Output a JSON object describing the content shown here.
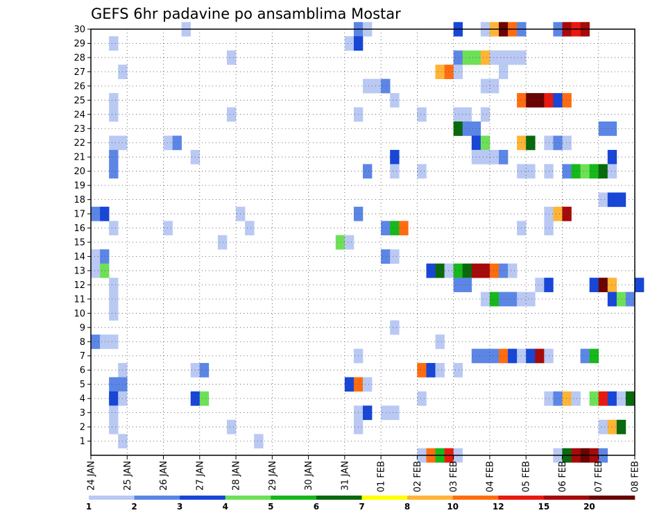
{
  "chart_data": {
    "type": "heatmap",
    "title": "GEFS 6hr padavine po ansamblima Mostar",
    "y_categories": [
      "1",
      "2",
      "3",
      "4",
      "5",
      "6",
      "7",
      "8",
      "9",
      "10",
      "11",
      "12",
      "13",
      "14",
      "15",
      "16",
      "17",
      "18",
      "19",
      "20",
      "21",
      "22",
      "23",
      "24",
      "25",
      "26",
      "27",
      "28",
      "29",
      "30"
    ],
    "x_tick_labels": [
      "24 JAN",
      "25 JAN",
      "26 JAN",
      "27 JAN",
      "28 JAN",
      "29 JAN",
      "30 JAN",
      "31 JAN",
      "01 FEB",
      "02 FEB",
      "03 FEB",
      "04 FEB",
      "05 FEB",
      "06 FEB",
      "07 FEB",
      "08 FEB"
    ],
    "x_domain": [
      "24 JAN 00Z",
      "08 FEB 00Z"
    ],
    "time_step_hours": 6,
    "grid": true,
    "colorbar": {
      "labels": [
        "1",
        "2",
        "3",
        "4",
        "5",
        "6",
        "7",
        "8",
        "10",
        "12",
        "15",
        "20"
      ],
      "colors": [
        "#b9c9f3",
        "#5c86e6",
        "#1846d6",
        "#6ee058",
        "#16b81b",
        "#08690d",
        "#ffff00",
        "#ffb436",
        "#ff6c10",
        "#e81a10",
        "#a60a0a",
        "#6a0303"
      ]
    },
    "cells": [
      [
        30,
        "26 JAN 12Z",
        1
      ],
      [
        30,
        "31 JAN 06Z",
        2
      ],
      [
        30,
        "31 JAN 12Z",
        1
      ],
      [
        30,
        "03 FEB 00Z",
        3
      ],
      [
        30,
        "03 FEB 18Z",
        1
      ],
      [
        30,
        "04 FEB 00Z",
        8
      ],
      [
        30,
        "04 FEB 06Z",
        20
      ],
      [
        30,
        "04 FEB 12Z",
        10
      ],
      [
        30,
        "04 FEB 18Z",
        2
      ],
      [
        30,
        "05 FEB 18Z",
        2
      ],
      [
        30,
        "06 FEB 00Z",
        15
      ],
      [
        30,
        "06 FEB 06Z",
        12
      ],
      [
        30,
        "06 FEB 12Z",
        15
      ],
      [
        29,
        "24 JAN 12Z",
        1
      ],
      [
        29,
        "31 JAN 00Z",
        1
      ],
      [
        29,
        "31 JAN 06Z",
        3
      ],
      [
        28,
        "27 JAN 18Z",
        1
      ],
      [
        28,
        "03 FEB 00Z",
        2
      ],
      [
        28,
        "03 FEB 06Z",
        4
      ],
      [
        28,
        "03 FEB 12Z",
        4
      ],
      [
        28,
        "03 FEB 18Z",
        8
      ],
      [
        28,
        "04 FEB 00Z",
        1
      ],
      [
        28,
        "04 FEB 06Z",
        1
      ],
      [
        28,
        "04 FEB 12Z",
        1
      ],
      [
        28,
        "04 FEB 18Z",
        1
      ],
      [
        27,
        "24 JAN 18Z",
        1
      ],
      [
        27,
        "02 FEB 12Z",
        8
      ],
      [
        27,
        "02 FEB 18Z",
        10
      ],
      [
        27,
        "03 FEB 00Z",
        1
      ],
      [
        27,
        "04 FEB 06Z",
        1
      ],
      [
        26,
        "31 JAN 12Z",
        1
      ],
      [
        26,
        "31 JAN 18Z",
        1
      ],
      [
        26,
        "01 FEB 00Z",
        2
      ],
      [
        26,
        "03 FEB 18Z",
        1
      ],
      [
        26,
        "04 FEB 00Z",
        1
      ],
      [
        25,
        "24 JAN 12Z",
        1
      ],
      [
        25,
        "01 FEB 06Z",
        1
      ],
      [
        25,
        "04 FEB 18Z",
        10
      ],
      [
        25,
        "05 FEB 00Z",
        20
      ],
      [
        25,
        "05 FEB 06Z",
        20
      ],
      [
        25,
        "05 FEB 12Z",
        12
      ],
      [
        25,
        "05 FEB 18Z",
        3
      ],
      [
        25,
        "06 FEB 00Z",
        10
      ],
      [
        24,
        "24 JAN 12Z",
        1
      ],
      [
        24,
        "27 JAN 18Z",
        1
      ],
      [
        24,
        "31 JAN 06Z",
        1
      ],
      [
        24,
        "02 FEB 00Z",
        1
      ],
      [
        24,
        "03 FEB 00Z",
        1
      ],
      [
        24,
        "03 FEB 06Z",
        1
      ],
      [
        24,
        "03 FEB 18Z",
        1
      ],
      [
        23,
        "03 FEB 00Z",
        6
      ],
      [
        23,
        "03 FEB 06Z",
        2
      ],
      [
        23,
        "03 FEB 12Z",
        2
      ],
      [
        23,
        "07 FEB 00Z",
        2
      ],
      [
        23,
        "07 FEB 06Z",
        2
      ],
      [
        22,
        "24 JAN 12Z",
        1
      ],
      [
        22,
        "24 JAN 18Z",
        1
      ],
      [
        22,
        "26 JAN 00Z",
        1
      ],
      [
        22,
        "26 JAN 06Z",
        2
      ],
      [
        22,
        "03 FEB 12Z",
        3
      ],
      [
        22,
        "03 FEB 18Z",
        4
      ],
      [
        22,
        "04 FEB 18Z",
        8
      ],
      [
        22,
        "05 FEB 00Z",
        6
      ],
      [
        22,
        "05 FEB 12Z",
        1
      ],
      [
        22,
        "05 FEB 18Z",
        2
      ],
      [
        22,
        "06 FEB 00Z",
        1
      ],
      [
        21,
        "24 JAN 12Z",
        2
      ],
      [
        21,
        "26 JAN 18Z",
        1
      ],
      [
        21,
        "01 FEB 06Z",
        3
      ],
      [
        21,
        "03 FEB 12Z",
        1
      ],
      [
        21,
        "03 FEB 18Z",
        1
      ],
      [
        21,
        "04 FEB 00Z",
        1
      ],
      [
        21,
        "04 FEB 06Z",
        2
      ],
      [
        21,
        "07 FEB 06Z",
        3
      ],
      [
        20,
        "24 JAN 12Z",
        2
      ],
      [
        20,
        "31 JAN 12Z",
        2
      ],
      [
        20,
        "01 FEB 06Z",
        1
      ],
      [
        20,
        "02 FEB 00Z",
        1
      ],
      [
        20,
        "04 FEB 18Z",
        1
      ],
      [
        20,
        "05 FEB 00Z",
        1
      ],
      [
        20,
        "05 FEB 12Z",
        1
      ],
      [
        20,
        "06 FEB 00Z",
        2
      ],
      [
        20,
        "06 FEB 06Z",
        5
      ],
      [
        20,
        "06 FEB 12Z",
        4
      ],
      [
        20,
        "06 FEB 18Z",
        5
      ],
      [
        20,
        "07 FEB 00Z",
        6
      ],
      [
        20,
        "07 FEB 06Z",
        1
      ],
      [
        18,
        "07 FEB 00Z",
        1
      ],
      [
        18,
        "07 FEB 06Z",
        3
      ],
      [
        18,
        "07 FEB 12Z",
        3
      ],
      [
        17,
        "24 JAN 00Z",
        2
      ],
      [
        17,
        "24 JAN 06Z",
        3
      ],
      [
        17,
        "28 JAN 00Z",
        1
      ],
      [
        17,
        "31 JAN 06Z",
        2
      ],
      [
        17,
        "05 FEB 12Z",
        1
      ],
      [
        17,
        "05 FEB 18Z",
        8
      ],
      [
        17,
        "06 FEB 00Z",
        15
      ],
      [
        16,
        "24 JAN 12Z",
        1
      ],
      [
        16,
        "26 JAN 00Z",
        1
      ],
      [
        16,
        "28 JAN 06Z",
        1
      ],
      [
        16,
        "01 FEB 00Z",
        2
      ],
      [
        16,
        "01 FEB 06Z",
        5
      ],
      [
        16,
        "01 FEB 12Z",
        10
      ],
      [
        16,
        "04 FEB 18Z",
        1
      ],
      [
        16,
        "05 FEB 12Z",
        1
      ],
      [
        15,
        "27 JAN 12Z",
        1
      ],
      [
        15,
        "30 JAN 18Z",
        4
      ],
      [
        15,
        "31 JAN 00Z",
        1
      ],
      [
        14,
        "24 JAN 00Z",
        1
      ],
      [
        14,
        "24 JAN 06Z",
        2
      ],
      [
        14,
        "01 FEB 00Z",
        2
      ],
      [
        14,
        "01 FEB 06Z",
        1
      ],
      [
        13,
        "24 JAN 00Z",
        1
      ],
      [
        13,
        "24 JAN 06Z",
        4
      ],
      [
        13,
        "02 FEB 06Z",
        3
      ],
      [
        13,
        "02 FEB 12Z",
        6
      ],
      [
        13,
        "02 FEB 18Z",
        1
      ],
      [
        13,
        "03 FEB 00Z",
        5
      ],
      [
        13,
        "03 FEB 06Z",
        6
      ],
      [
        13,
        "03 FEB 12Z",
        15
      ],
      [
        13,
        "03 FEB 18Z",
        15
      ],
      [
        13,
        "04 FEB 00Z",
        10
      ],
      [
        13,
        "04 FEB 06Z",
        2
      ],
      [
        13,
        "04 FEB 12Z",
        1
      ],
      [
        12,
        "24 JAN 12Z",
        1
      ],
      [
        12,
        "03 FEB 00Z",
        2
      ],
      [
        12,
        "03 FEB 06Z",
        2
      ],
      [
        12,
        "05 FEB 06Z",
        1
      ],
      [
        12,
        "05 FEB 12Z",
        3
      ],
      [
        12,
        "06 FEB 18Z",
        3
      ],
      [
        12,
        "07 FEB 00Z",
        20
      ],
      [
        12,
        "07 FEB 06Z",
        8
      ],
      [
        12,
        "08 FEB 00Z",
        3
      ],
      [
        11,
        "24 JAN 12Z",
        1
      ],
      [
        11,
        "03 FEB 18Z",
        1
      ],
      [
        11,
        "04 FEB 00Z",
        5
      ],
      [
        11,
        "04 FEB 06Z",
        2
      ],
      [
        11,
        "04 FEB 12Z",
        2
      ],
      [
        11,
        "04 FEB 18Z",
        1
      ],
      [
        11,
        "05 FEB 00Z",
        1
      ],
      [
        11,
        "07 FEB 06Z",
        3
      ],
      [
        11,
        "07 FEB 12Z",
        4
      ],
      [
        11,
        "07 FEB 18Z",
        2
      ],
      [
        10,
        "24 JAN 12Z",
        1
      ],
      [
        9,
        "01 FEB 06Z",
        1
      ],
      [
        8,
        "24 JAN 00Z",
        2
      ],
      [
        8,
        "24 JAN 06Z",
        1
      ],
      [
        8,
        "24 JAN 12Z",
        1
      ],
      [
        8,
        "02 FEB 12Z",
        1
      ],
      [
        7,
        "31 JAN 06Z",
        1
      ],
      [
        7,
        "03 FEB 12Z",
        2
      ],
      [
        7,
        "03 FEB 18Z",
        2
      ],
      [
        7,
        "04 FEB 00Z",
        2
      ],
      [
        7,
        "04 FEB 06Z",
        10
      ],
      [
        7,
        "04 FEB 12Z",
        3
      ],
      [
        7,
        "04 FEB 18Z",
        1
      ],
      [
        7,
        "05 FEB 00Z",
        3
      ],
      [
        7,
        "05 FEB 06Z",
        15
      ],
      [
        7,
        "05 FEB 12Z",
        1
      ],
      [
        7,
        "06 FEB 12Z",
        2
      ],
      [
        7,
        "06 FEB 18Z",
        5
      ],
      [
        6,
        "24 JAN 18Z",
        1
      ],
      [
        6,
        "26 JAN 18Z",
        1
      ],
      [
        6,
        "27 JAN 00Z",
        2
      ],
      [
        6,
        "02 FEB 00Z",
        10
      ],
      [
        6,
        "02 FEB 06Z",
        3
      ],
      [
        6,
        "02 FEB 12Z",
        1
      ],
      [
        6,
        "03 FEB 00Z",
        1
      ],
      [
        5,
        "24 JAN 12Z",
        2
      ],
      [
        5,
        "24 JAN 18Z",
        2
      ],
      [
        5,
        "31 JAN 00Z",
        3
      ],
      [
        5,
        "31 JAN 06Z",
        10
      ],
      [
        5,
        "31 JAN 12Z",
        1
      ],
      [
        4,
        "24 JAN 12Z",
        3
      ],
      [
        4,
        "24 JAN 18Z",
        1
      ],
      [
        4,
        "26 JAN 18Z",
        3
      ],
      [
        4,
        "27 JAN 00Z",
        4
      ],
      [
        4,
        "02 FEB 00Z",
        1
      ],
      [
        4,
        "05 FEB 12Z",
        1
      ],
      [
        4,
        "05 FEB 18Z",
        2
      ],
      [
        4,
        "06 FEB 00Z",
        8
      ],
      [
        4,
        "06 FEB 06Z",
        1
      ],
      [
        4,
        "06 FEB 18Z",
        4
      ],
      [
        4,
        "07 FEB 00Z",
        12
      ],
      [
        4,
        "07 FEB 06Z",
        3
      ],
      [
        4,
        "07 FEB 12Z",
        1
      ],
      [
        4,
        "07 FEB 18Z",
        6
      ],
      [
        3,
        "24 JAN 12Z",
        1
      ],
      [
        3,
        "31 JAN 06Z",
        1
      ],
      [
        3,
        "31 JAN 12Z",
        3
      ],
      [
        3,
        "01 FEB 00Z",
        1
      ],
      [
        3,
        "01 FEB 06Z",
        1
      ],
      [
        2,
        "24 JAN 12Z",
        1
      ],
      [
        2,
        "27 JAN 18Z",
        1
      ],
      [
        2,
        "31 JAN 06Z",
        1
      ],
      [
        2,
        "07 FEB 00Z",
        1
      ],
      [
        2,
        "07 FEB 06Z",
        8
      ],
      [
        2,
        "07 FEB 12Z",
        6
      ],
      [
        1,
        "24 JAN 18Z",
        1
      ],
      [
        1,
        "28 JAN 12Z",
        1
      ],
      [
        0,
        "02 FEB 00Z",
        1
      ],
      [
        0,
        "02 FEB 06Z",
        10
      ],
      [
        0,
        "02 FEB 12Z",
        5
      ],
      [
        0,
        "02 FEB 18Z",
        12
      ],
      [
        0,
        "03 FEB 00Z",
        1
      ],
      [
        0,
        "05 FEB 18Z",
        1
      ],
      [
        0,
        "06 FEB 00Z",
        6
      ],
      [
        0,
        "06 FEB 06Z",
        15
      ],
      [
        0,
        "06 FEB 12Z",
        20
      ],
      [
        0,
        "06 FEB 18Z",
        15
      ],
      [
        0,
        "07 FEB 00Z",
        2
      ]
    ]
  }
}
